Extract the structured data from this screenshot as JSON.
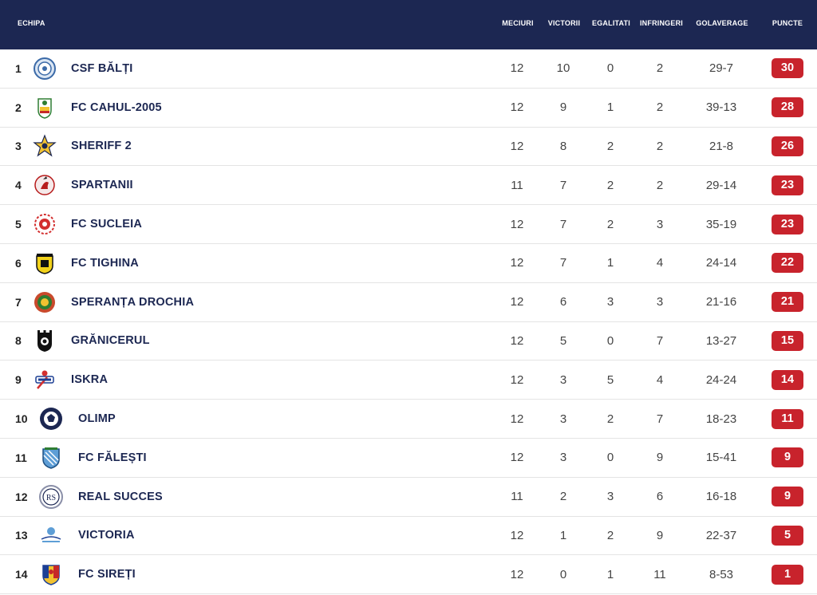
{
  "header": {
    "team": "ECHIPA",
    "played": "MECIURI",
    "wins": "VICTORII",
    "draws": "EGALITATI",
    "losses": "INFRINGERI",
    "goals": "GOLAVERAGE",
    "points": "PUNCTE"
  },
  "rows": [
    {
      "rank": "1",
      "team": "CSF BĂLȚI",
      "played": "12",
      "wins": "10",
      "draws": "0",
      "losses": "2",
      "goals": "29-7",
      "points": "30",
      "logo": "balti-crest-icon"
    },
    {
      "rank": "2",
      "team": "FC CAHUL-2005",
      "played": "12",
      "wins": "9",
      "draws": "1",
      "losses": "2",
      "goals": "39-13",
      "points": "28",
      "logo": "cahul-crest-icon"
    },
    {
      "rank": "3",
      "team": "SHERIFF 2",
      "played": "12",
      "wins": "8",
      "draws": "2",
      "losses": "2",
      "goals": "21-8",
      "points": "26",
      "logo": "sheriff-star-icon"
    },
    {
      "rank": "4",
      "team": "SPARTANII",
      "played": "11",
      "wins": "7",
      "draws": "2",
      "losses": "2",
      "goals": "29-14",
      "points": "23",
      "logo": "spartanii-crest-icon"
    },
    {
      "rank": "5",
      "team": "FC SUCLEIA",
      "played": "12",
      "wins": "7",
      "draws": "2",
      "losses": "3",
      "goals": "35-19",
      "points": "23",
      "logo": "sucleia-crest-icon"
    },
    {
      "rank": "6",
      "team": "FC TIGHINA",
      "played": "12",
      "wins": "7",
      "draws": "1",
      "losses": "4",
      "goals": "24-14",
      "points": "22",
      "logo": "tighina-crest-icon"
    },
    {
      "rank": "7",
      "team": "SPERANȚA DROCHIA",
      "played": "12",
      "wins": "6",
      "draws": "3",
      "losses": "3",
      "goals": "21-16",
      "points": "21",
      "logo": "drochia-crest-icon"
    },
    {
      "rank": "8",
      "team": "GRĂNICERUL",
      "played": "12",
      "wins": "5",
      "draws": "0",
      "losses": "7",
      "goals": "13-27",
      "points": "15",
      "logo": "granicerul-crest-icon"
    },
    {
      "rank": "9",
      "team": "ISKRA",
      "played": "12",
      "wins": "3",
      "draws": "5",
      "losses": "4",
      "goals": "24-24",
      "points": "14",
      "logo": "iskra-crest-icon"
    },
    {
      "rank": "10",
      "team": "OLIMP",
      "played": "12",
      "wins": "3",
      "draws": "2",
      "losses": "7",
      "goals": "18-23",
      "points": "11",
      "logo": "olimp-ball-icon"
    },
    {
      "rank": "11",
      "team": "FC FĂLEȘTI",
      "played": "12",
      "wins": "3",
      "draws": "0",
      "losses": "9",
      "goals": "15-41",
      "points": "9",
      "logo": "falesti-shield-icon"
    },
    {
      "rank": "12",
      "team": "REAL SUCCES",
      "played": "11",
      "wins": "2",
      "draws": "3",
      "losses": "6",
      "goals": "16-18",
      "points": "9",
      "logo": "real-succes-crest-icon"
    },
    {
      "rank": "13",
      "team": "VICTORIA",
      "played": "12",
      "wins": "1",
      "draws": "2",
      "losses": "9",
      "goals": "22-37",
      "points": "5",
      "logo": "victoria-crest-icon"
    },
    {
      "rank": "14",
      "team": "FC SIREȚI",
      "played": "12",
      "wins": "0",
      "draws": "1",
      "losses": "11",
      "goals": "8-53",
      "points": "1",
      "logo": "sireti-shield-icon"
    }
  ],
  "colors": {
    "header_bg": "#1c2752",
    "points_badge": "#c8232c",
    "team_text": "#1c2752"
  }
}
